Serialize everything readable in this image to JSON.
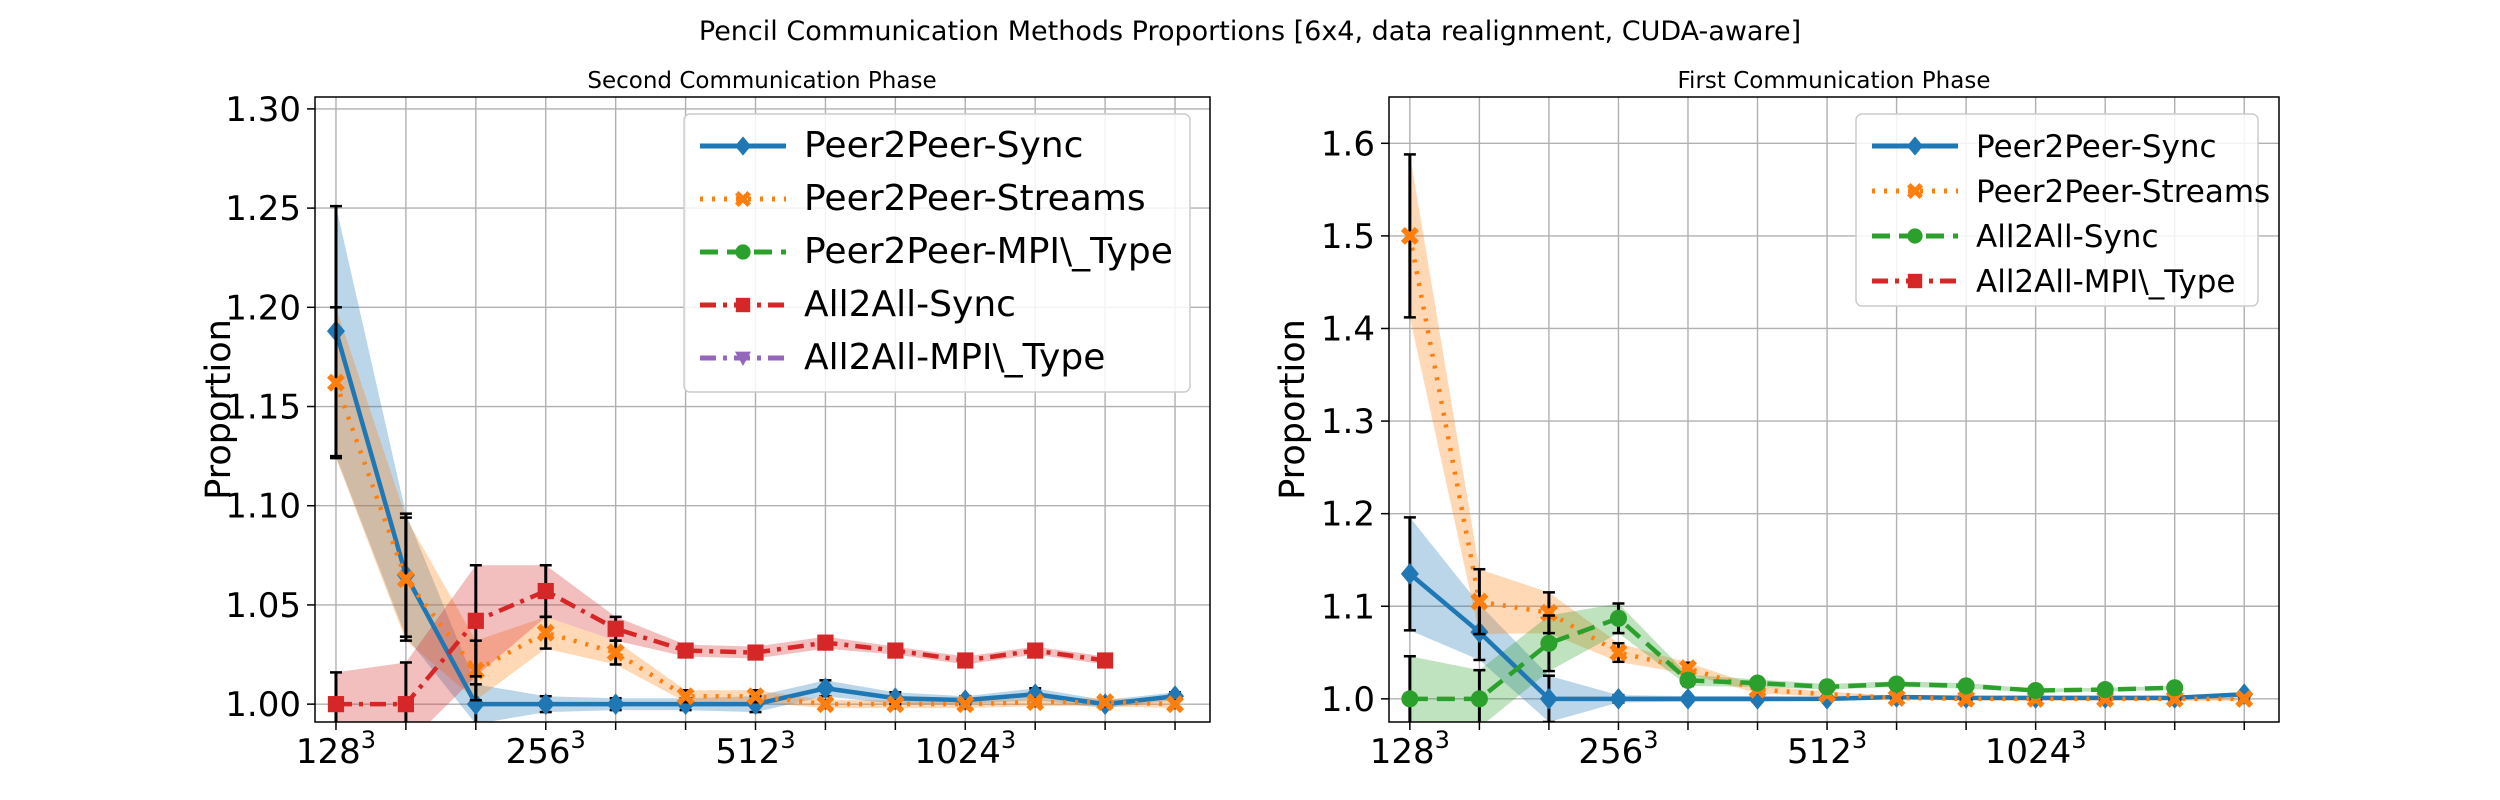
{
  "figure": {
    "title": "Pencil Communication Methods Proportions [6x4, data realignment, CUDA-aware]"
  },
  "chart_data": [
    {
      "type": "line",
      "title": "Second Communication Phase",
      "xlabel": "",
      "ylabel": "Proportion",
      "ylim": [
        0.991,
        1.306
      ],
      "yticks": [
        "1.00",
        "1.05",
        "1.10",
        "1.15",
        "1.20",
        "1.25",
        "1.30"
      ],
      "xticks": [
        {
          "base": "128",
          "exp": "3"
        },
        {
          "base": "256",
          "exp": "3"
        },
        {
          "base": "512",
          "exp": "3"
        },
        {
          "base": "1024",
          "exp": "3"
        }
      ],
      "grid": true,
      "legend_position": "top-right",
      "series": [
        {
          "name": "Peer2Peer-Sync",
          "color": "#1f77b4",
          "marker": "diamond",
          "dash": "solid",
          "values": [
            1.188,
            1.065,
            1.0,
            1.0,
            1.0,
            1.0,
            1.0,
            1.008,
            1.003,
            1.002,
            1.005,
            1.0,
            1.004
          ],
          "err": [
            0.063,
            0.031,
            0.01,
            0.004,
            0.003,
            0.003,
            0.004,
            0.004,
            0.003,
            0.002,
            0.003,
            0.002,
            0.002
          ]
        },
        {
          "name": "Peer2Peer-Streams",
          "color": "#ff7f0e",
          "marker": "x",
          "dash": "dot",
          "values": [
            1.162,
            1.063,
            1.017,
            1.036,
            1.026,
            1.004,
            1.004,
            1.0,
            1.0,
            1.0,
            1.001,
            1.001,
            1.0
          ],
          "err": [
            0.038,
            0.031,
            0.015,
            0.008,
            0.006,
            0.003,
            0.003,
            0.002,
            0.002,
            0.002,
            0.002,
            0.002,
            0.002
          ]
        },
        {
          "name": "Peer2Peer-MPI\\_Type",
          "color": "#2ca02c",
          "marker": "circle",
          "dash": "dash",
          "values": []
        },
        {
          "name": "All2All-Sync",
          "color": "#d62728",
          "marker": "square",
          "dash": "dashdot",
          "values": [
            1.0,
            1.0,
            1.042,
            1.057,
            1.038,
            1.027,
            1.026,
            1.031,
            1.027,
            1.022,
            1.027,
            1.022
          ],
          "err": [
            0.016,
            0.021,
            0.028,
            0.013,
            0.006,
            0.003,
            0.003,
            0.003,
            0.002,
            0.002,
            0.002,
            0.002
          ]
        },
        {
          "name": "All2All-MPI\\_Type",
          "color": "#9467bd",
          "marker": "triangle-down",
          "dash": "dashdot",
          "values": []
        }
      ]
    },
    {
      "type": "line",
      "title": "First Communication Phase",
      "xlabel": "",
      "ylabel": "Proportion",
      "ylim": [
        0.975,
        1.65
      ],
      "yticks": [
        "1.0",
        "1.1",
        "1.2",
        "1.3",
        "1.4",
        "1.5",
        "1.6"
      ],
      "xticks": [
        {
          "base": "128",
          "exp": "3"
        },
        {
          "base": "256",
          "exp": "3"
        },
        {
          "base": "512",
          "exp": "3"
        },
        {
          "base": "1024",
          "exp": "3"
        }
      ],
      "grid": true,
      "legend_position": "top-right",
      "series": [
        {
          "name": "Peer2Peer-Sync",
          "color": "#1f77b4",
          "marker": "diamond",
          "dash": "solid",
          "values": [
            1.135,
            1.072,
            1.0,
            1.0,
            1.0,
            1.0,
            1.0,
            1.002,
            1.001,
            1.001,
            1.001,
            1.001,
            1.005
          ],
          "err": [
            0.061,
            0.03,
            0.025,
            0.004,
            0.003,
            0.003,
            0.002,
            0.002,
            0.002,
            0.002,
            0.002,
            0.002,
            0.002
          ]
        },
        {
          "name": "Peer2Peer-Streams",
          "color": "#ff7f0e",
          "marker": "x",
          "dash": "dot",
          "values": [
            1.5,
            1.105,
            1.093,
            1.05,
            1.033,
            1.01,
            1.005,
            1.001,
            1.0,
            1.0,
            1.0,
            1.0,
            1.0
          ],
          "err": [
            0.088,
            0.035,
            0.022,
            0.01,
            0.006,
            0.004,
            0.003,
            0.002,
            0.002,
            0.002,
            0.002,
            0.002,
            0.002
          ]
        },
        {
          "name": "All2All-Sync",
          "color": "#2ca02c",
          "marker": "circle",
          "dash": "dash",
          "values": [
            1.0,
            1.0,
            1.06,
            1.087,
            1.02,
            1.017,
            1.013,
            1.016,
            1.014,
            1.009,
            1.01,
            1.012
          ],
          "err": [
            0.046,
            0.031,
            0.03,
            0.016,
            0.006,
            0.004,
            0.003,
            0.003,
            0.003,
            0.002,
            0.002,
            0.002
          ]
        },
        {
          "name": "All2All-MPI\\_Type",
          "color": "#d62728",
          "marker": "square",
          "dash": "dashdot",
          "values": []
        }
      ]
    }
  ]
}
